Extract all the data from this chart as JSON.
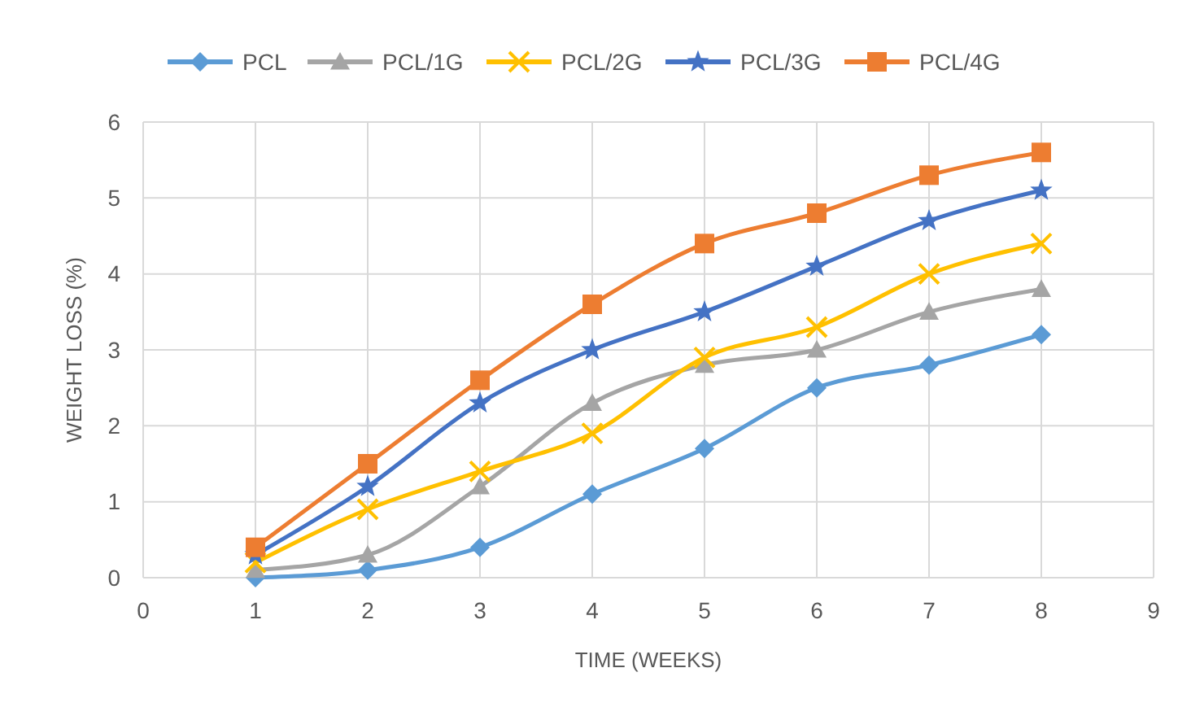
{
  "chart_data": {
    "type": "line",
    "xlabel": "TIME (WEEKS)",
    "ylabel": "WEIGHT LOSS (%)",
    "x": [
      1,
      2,
      3,
      4,
      5,
      6,
      7,
      8
    ],
    "xlim": [
      0,
      9
    ],
    "xticks": [
      0,
      1,
      2,
      3,
      4,
      5,
      6,
      7,
      8,
      9
    ],
    "ylim": [
      0,
      6
    ],
    "yticks": [
      0,
      1,
      2,
      3,
      4,
      5,
      6
    ],
    "grid": true,
    "legend": "top",
    "line_style": "solid",
    "series": [
      {
        "name": "PCL",
        "color": "#5b9bd5",
        "marker": "diamond",
        "values": [
          0,
          0.1,
          0.4,
          1.1,
          1.7,
          2.5,
          2.8,
          3.2
        ]
      },
      {
        "name": "PCL/1G",
        "color": "#a5a5a5",
        "marker": "triangle",
        "values": [
          0.1,
          0.3,
          1.2,
          2.3,
          2.8,
          3,
          3.5,
          3.8
        ]
      },
      {
        "name": "PCL/2G",
        "color": "#ffc000",
        "marker": "cross",
        "values": [
          0.2,
          0.9,
          1.4,
          1.9,
          2.9,
          3.3,
          4,
          4.4
        ]
      },
      {
        "name": "PCL/3G",
        "color": "#4472c4",
        "marker": "star",
        "values": [
          0.3,
          1.2,
          2.3,
          3,
          3.5,
          4.1,
          4.7,
          5.1
        ]
      },
      {
        "name": "PCL/4G",
        "color": "#ed7d31",
        "marker": "square",
        "values": [
          0.4,
          1.5,
          2.6,
          3.6,
          4.4,
          4.8,
          5.3,
          5.6
        ]
      }
    ]
  }
}
